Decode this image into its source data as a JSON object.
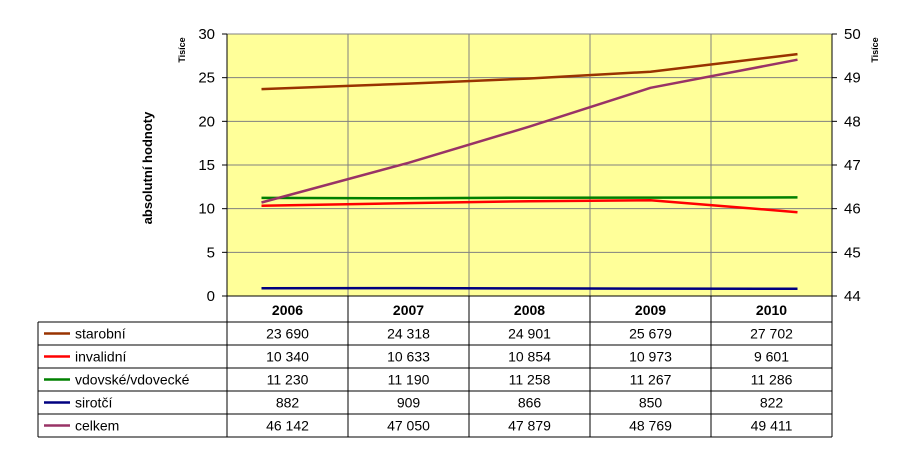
{
  "chart_data": {
    "type": "line",
    "ylabel": "absolutní hodnoty",
    "y_unit_left": "Tisíce",
    "y_unit_right": "Tisíce",
    "ylim": [
      0,
      30
    ],
    "y2lim": [
      44,
      50
    ],
    "yticks": [
      "0",
      "5",
      "10",
      "15",
      "20",
      "25",
      "30"
    ],
    "y2ticks": [
      "44",
      "45",
      "46",
      "47",
      "48",
      "49",
      "50"
    ],
    "grid": true,
    "background": "#ffff99",
    "categories": [
      "2006",
      "2007",
      "2008",
      "2009",
      "2010"
    ],
    "series": [
      {
        "name": "starobní",
        "axis": "left",
        "color": "#993300",
        "values": [
          23690,
          24318,
          24901,
          25679,
          27702
        ],
        "labels": [
          "23 690",
          "24 318",
          "24 901",
          "25 679",
          "27 702"
        ]
      },
      {
        "name": "invalidní",
        "axis": "left",
        "color": "#ff0000",
        "values": [
          10340,
          10633,
          10854,
          10973,
          9601
        ],
        "labels": [
          "10 340",
          "10 633",
          "10 854",
          "10 973",
          "9 601"
        ]
      },
      {
        "name": "vdovské/vdovecké",
        "axis": "left",
        "color": "#008000",
        "values": [
          11230,
          11190,
          11258,
          11267,
          11286
        ],
        "labels": [
          "11 230",
          "11 190",
          "11 258",
          "11 267",
          "11 286"
        ]
      },
      {
        "name": "sirotčí",
        "axis": "left",
        "color": "#000080",
        "values": [
          882,
          909,
          866,
          850,
          822
        ],
        "labels": [
          "882",
          "909",
          "866",
          "850",
          "822"
        ]
      },
      {
        "name": "celkem",
        "axis": "right",
        "color": "#993366",
        "values": [
          46142,
          47050,
          47879,
          48769,
          49411
        ],
        "labels": [
          "46 142",
          "47 050",
          "47 879",
          "48 769",
          "49 411"
        ]
      }
    ]
  }
}
